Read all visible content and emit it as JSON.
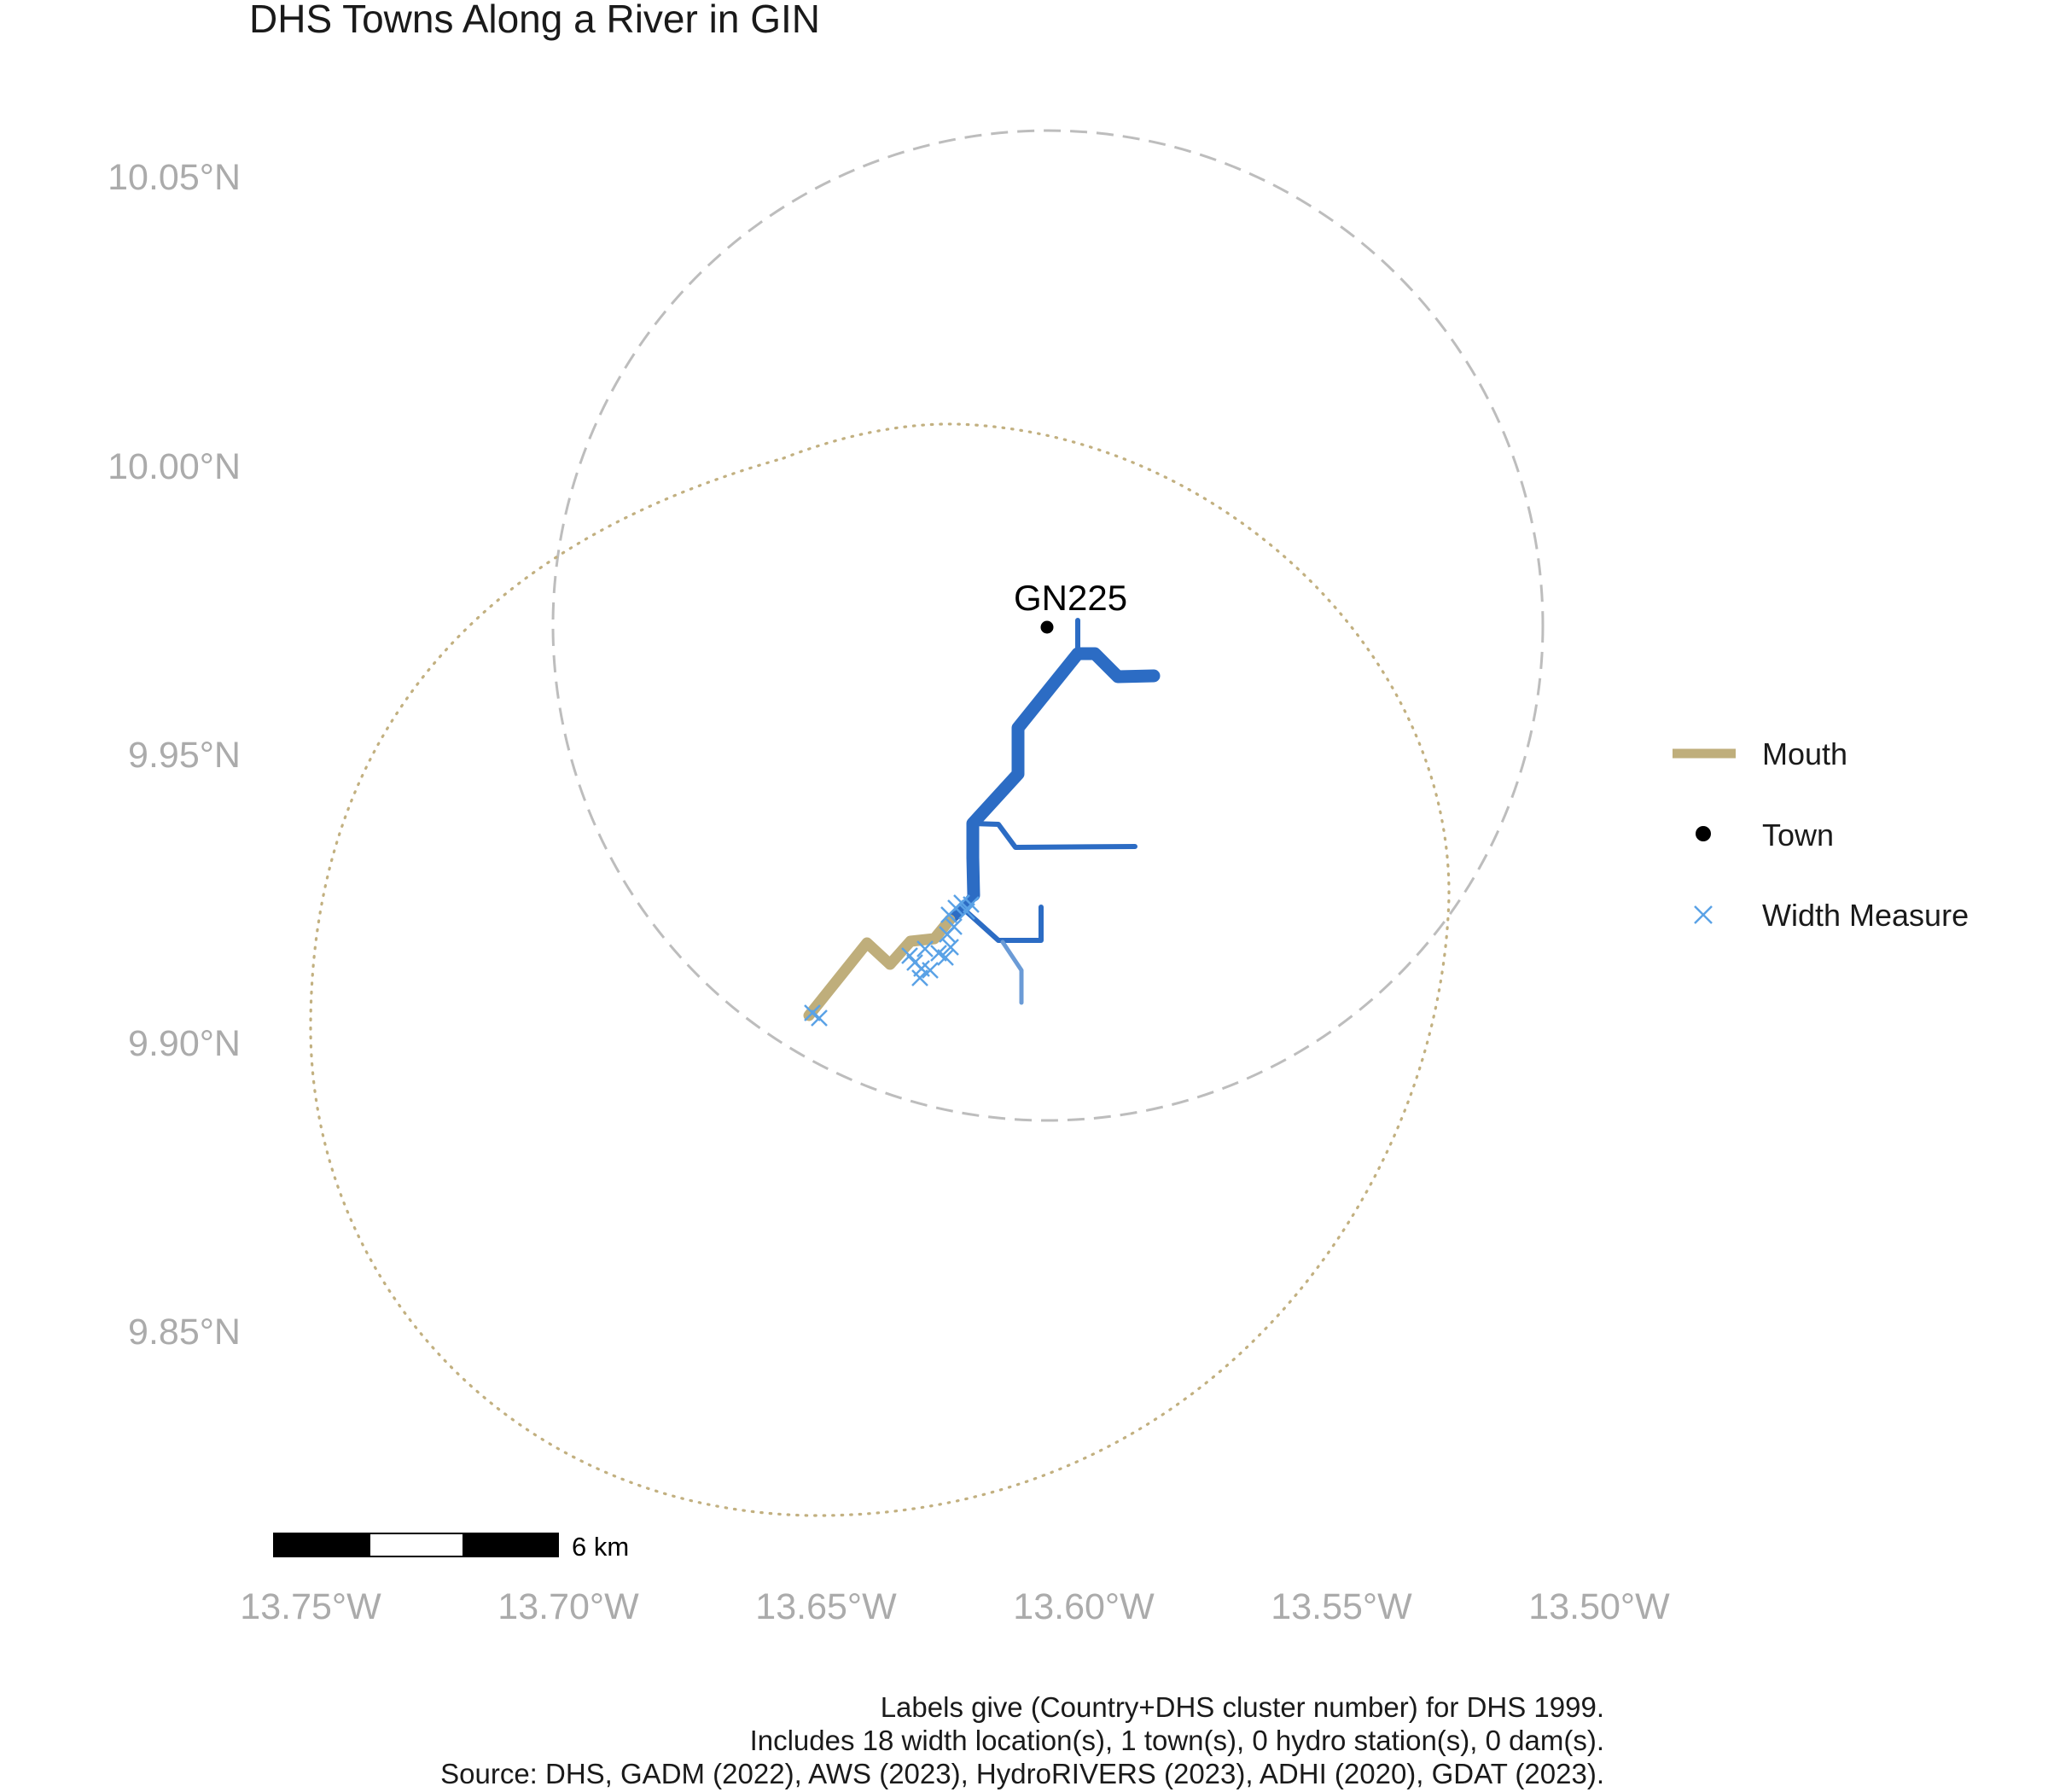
{
  "title": "DHS Towns Along a River in GIN",
  "chart_data": {
    "type": "map",
    "title": "DHS Towns Along a River in GIN",
    "country": "GIN",
    "x_ticks": [
      "13.75°W",
      "13.70°W",
      "13.65°W",
      "13.60°W",
      "13.55°W",
      "13.50°W"
    ],
    "y_ticks": [
      "10.05°N",
      "10.00°N",
      "9.95°N",
      "9.90°N",
      "9.85°N"
    ],
    "towns": [
      {
        "label": "GN225",
        "lon": -13.607,
        "lat": 9.972
      }
    ],
    "legend": [
      {
        "label": "Mouth",
        "kind": "line",
        "color": "#bfae7b"
      },
      {
        "label": "Town",
        "kind": "point",
        "color": "#000000"
      },
      {
        "label": "Width Measure",
        "kind": "cross",
        "color": "#5aa2e6"
      }
    ],
    "scale_bar": {
      "label": "6 km"
    }
  },
  "colors": {
    "river": "#2c6cc4",
    "river_light": "#6b9bd6",
    "mouth": "#bfae7b",
    "width_measure": "#5aa2e6",
    "circle_dashed": "#bdbdbd",
    "circle_dotted": "#c2b080",
    "tick_text": "#ababab"
  },
  "caption": {
    "line1": "Labels give (Country+DHS cluster number) for DHS 1999.",
    "line2": "Includes 18 width location(s), 1 town(s), 0 hydro station(s), 0 dam(s).",
    "line3": "Source: DHS, GADM (2022), AWS (2023), HydroRIVERS (2023), ADHI (2020), GDAT (2023)."
  }
}
